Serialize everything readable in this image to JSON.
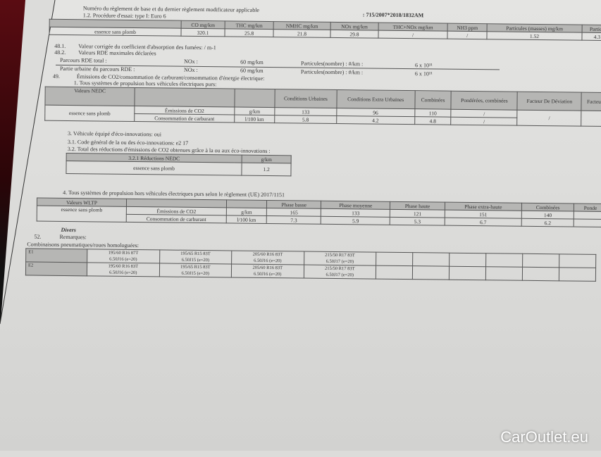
{
  "header": {
    "regulation_label": "Numéro du règlement de base et du dernier règlement modificateur applicable",
    "regulation_value": ": 715/2007*2018/1832AM",
    "procedure": "1.2. Procédure d'essai: type I: Euro 6"
  },
  "emissions_table": {
    "headers": [
      "CO mg/km",
      "THC mg/km",
      "NMHC mg/km",
      "NOx mg/km",
      "THC+NOx mg/km",
      "NH3 ppm",
      "Particules (masses) mg/km",
      "Particu"
    ],
    "row_label": "essence sans plomb",
    "values": [
      "320.1",
      "25.8",
      "21.8",
      "29.8",
      "/",
      "/",
      "1.52",
      "4.3"
    ]
  },
  "s48_1": {
    "num": "48.1.",
    "text": "Valeur corrigée du coefficient d'absorption des fumées: / m-1"
  },
  "s48_2": {
    "num": "48.2.",
    "text": "Valeurs RDE maximales déclarées"
  },
  "rde": [
    {
      "label": "Parcours RDE total :",
      "nox": "NOx :",
      "nox_val": "60 mg/km",
      "pn": "Particules(nombre) : #/km :",
      "pn_val": "6 x 10¹¹"
    },
    {
      "label": "Partie urbaine du parcours RDE   :",
      "nox": "NOx :",
      "nox_val": "60 mg/km",
      "pn": "Particules(nombre) : #/km :",
      "pn_val": "6 x 10¹¹"
    }
  ],
  "s49": {
    "num": "49.",
    "text": "Émissions de CO2/consommation de carburant/consommation d'énergie électrique:",
    "sub1": "1. Tous systèmes de propulsion hors véhicules électriques purs:"
  },
  "nedc": {
    "title": "Valeurs NEDC",
    "headers": [
      "Conditions Urbaines",
      "Conditions Extra Urbaines",
      "Combinées",
      "Pondérées, combinées",
      "Facteur De Déviation",
      "Facteur"
    ],
    "fuel": "essence sans plomb",
    "rows": [
      {
        "label": "Émissions de CO2",
        "unit": "g/km",
        "values": [
          "133",
          "96",
          "110",
          "/"
        ]
      },
      {
        "label": "Consommation de carburant",
        "unit": "l/100 km",
        "values": [
          "5.8",
          "4.2",
          "4.8",
          "/"
        ]
      }
    ],
    "deviation": "/"
  },
  "eco": {
    "s3": "3. Véhicule équipé d'éco-innovations: oui",
    "s3_1": "3.1. Code général de la ou des éco-innovations: e2 17",
    "s3_2": "3.2. Total des réductions d'émissions de CO2 obtenues grâce à la ou aux éco-innovations :",
    "table_title": "3.2.1 Réductions NEDC",
    "unit": "g/km",
    "fuel": "essence sans plomb",
    "value": "1.2"
  },
  "wltp": {
    "intro": "4. Tous systèmes de propulsion hors véhicules électriques purs selon le règlement (UE) 2017/1151",
    "title": "Valeurs WLTP",
    "headers": [
      "Phase basse",
      "Phase moyenne",
      "Phase haute",
      "Phase extra-haute",
      "Combinées",
      "Ponde"
    ],
    "fuel": "essence sans plomb",
    "rows": [
      {
        "label": "Émissions de CO2",
        "unit": "g/km",
        "values": [
          "165",
          "133",
          "121",
          "151",
          "140"
        ]
      },
      {
        "label": "Consommation de carburant",
        "unit": "l/100 km",
        "values": [
          "7.3",
          "5.9",
          "5.3",
          "6.7",
          "6.2"
        ]
      }
    ]
  },
  "divers": {
    "title": "Divers",
    "num": "52.",
    "remarks": "Remarques:",
    "tyres_title": "Combinaisons pneumatiques/roues homologuées:"
  },
  "tyres": [
    {
      "id": "E1",
      "combos": [
        [
          "195/60 R16 87T",
          "6.50J16 (e=20)"
        ],
        [
          "195/65 R15 83T",
          "6.50J15 (e=20)"
        ],
        [
          "205/60 R16 83T",
          "6.50J16 (e=20)"
        ],
        [
          "215/50 R17 83T",
          "6.50J17 (e=20)"
        ]
      ]
    },
    {
      "id": "E2",
      "combos": [
        [
          "195/60 R16 83T",
          "6.50J16 (e=20)"
        ],
        [
          "195/65 R15 83T",
          "6.50J15 (e=20)"
        ],
        [
          "205/60 R16 83T",
          "6.50J16 (e=20)"
        ],
        [
          "215/50 R17 83T",
          "6.50J17 (e=20)"
        ]
      ]
    }
  ],
  "watermark": "CarOutlet.eu"
}
